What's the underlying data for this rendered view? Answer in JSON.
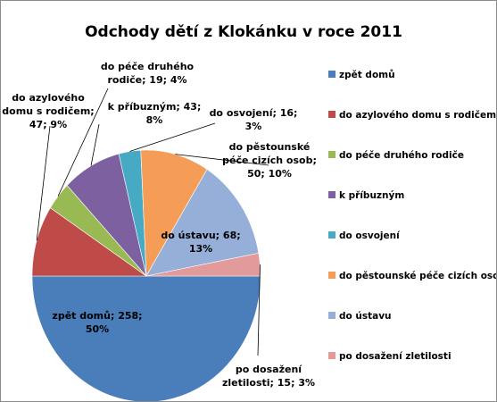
{
  "chart_data": {
    "type": "pie",
    "title": "Odchody dětí z Klokánku v roce 2011",
    "categories": [
      "zpět domů",
      "do azylového domu s rodičem",
      "do péče druhého rodiče",
      "k příbuzným",
      "do osvojení",
      "do pěstounské péče cizích osob",
      "do ústavu",
      "po dosažení zletilosti"
    ],
    "values": [
      258,
      47,
      19,
      43,
      16,
      50,
      68,
      15
    ],
    "percents": [
      50,
      9,
      4,
      8,
      3,
      10,
      13,
      3
    ],
    "colors": [
      "#4a7ebb",
      "#be4b48",
      "#98b954",
      "#7d60a0",
      "#46aac4",
      "#f59d56",
      "#95afd8",
      "#e29a9a"
    ],
    "data_labels": [
      [
        "zpět domů; 258;",
        "50%"
      ],
      [
        "do azylového",
        "domu s rodičem;",
        "47; 9%"
      ],
      [
        "do péče druhého",
        "rodiče; 19; 4%"
      ],
      [
        "k příbuzným; 43;",
        "8%"
      ],
      [
        "do osvojení; 16;",
        "3%"
      ],
      [
        "do pěstounské",
        "péče cizích osob;",
        "50; 10%"
      ],
      [
        "do ústavu; 68;",
        "13%"
      ],
      [
        "po dosažení",
        "zletilosti; 15; 3%"
      ]
    ],
    "legend_position": "right"
  }
}
